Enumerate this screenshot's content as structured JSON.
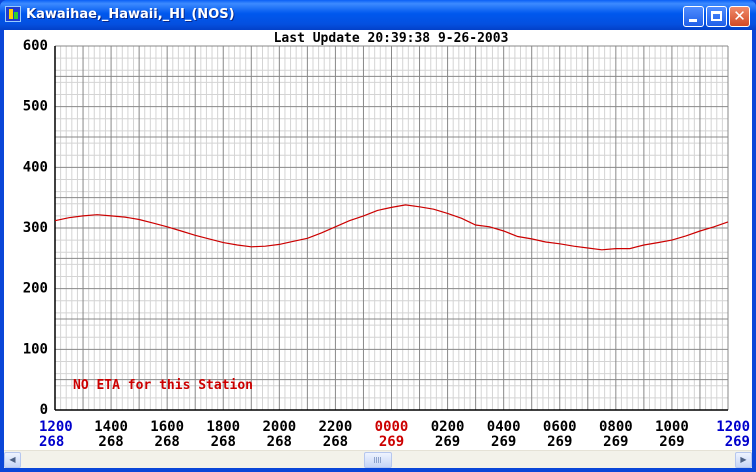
{
  "window": {
    "title": "Kawaihae,_Hawaii,_HI_(NOS)",
    "minimize_glyph": "minimize-icon",
    "maximize_glyph": "maximize-icon",
    "close_glyph": "✕"
  },
  "chart_header": "Last Update  20:39:38   9-26-2003",
  "notice": "NO ETA for this Station",
  "scroll": {
    "left_arrow": "◀",
    "right_arrow": "▶"
  },
  "colors": {
    "series": "#cc0000",
    "axis_blue": "#0000cc",
    "axis_red": "#cc0000",
    "grid_major": "#888888",
    "grid_minor": "#d4d4d4"
  },
  "chart_data": {
    "type": "line",
    "title": "Last Update  20:39:38   9-26-2003",
    "xlabel": "",
    "ylabel": "",
    "ylim": [
      0,
      600
    ],
    "yticks": [
      0,
      100,
      200,
      300,
      400,
      500,
      600
    ],
    "xlim": [
      0,
      24
    ],
    "xtick_times": [
      "1200",
      "1400",
      "1600",
      "1800",
      "2000",
      "2200",
      "0000",
      "0200",
      "0400",
      "0600",
      "0800",
      "1000",
      "1200"
    ],
    "xtick_days": [
      "268",
      "268",
      "268",
      "268",
      "268",
      "268",
      "269",
      "269",
      "269",
      "269",
      "269",
      "269",
      "269"
    ],
    "xtick_colors": [
      "blue",
      "black",
      "black",
      "black",
      "black",
      "black",
      "red",
      "black",
      "black",
      "black",
      "black",
      "black",
      "blue"
    ],
    "grid": true,
    "series": [
      {
        "x": [
          0,
          0.5,
          1,
          1.5,
          2,
          2.5,
          3,
          3.5,
          4,
          4.5,
          5,
          5.5,
          6,
          6.5,
          7,
          7.5,
          8,
          8.5,
          9,
          9.5,
          10,
          10.5,
          11,
          11.5,
          12,
          12.5,
          13,
          13.5,
          14,
          14.5,
          15,
          15.5,
          16,
          16.5,
          17,
          17.5,
          18,
          18.5,
          19,
          19.5,
          20,
          20.5,
          21,
          21.5,
          22,
          22.5,
          23,
          23.5,
          24
        ],
        "values": [
          312,
          317,
          320,
          322,
          320,
          318,
          314,
          308,
          302,
          295,
          288,
          282,
          276,
          272,
          269,
          270,
          273,
          278,
          283,
          292,
          302,
          312,
          320,
          329,
          334,
          338,
          335,
          331,
          324,
          316,
          305,
          302,
          295,
          286,
          282,
          277,
          274,
          270,
          267,
          264,
          266,
          266,
          272,
          276,
          280,
          287,
          295,
          302,
          310
        ]
      }
    ]
  }
}
